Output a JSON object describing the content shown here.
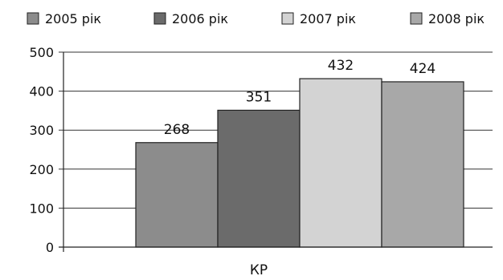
{
  "chart_data": {
    "type": "bar",
    "categories": [
      "КР"
    ],
    "series": [
      {
        "name": "2005 рік",
        "values": [
          268
        ],
        "color": "#8c8c8c"
      },
      {
        "name": "2006 рік",
        "values": [
          351
        ],
        "color": "#6b6b6b"
      },
      {
        "name": "2007 рік",
        "values": [
          432
        ],
        "color": "#d3d3d3"
      },
      {
        "name": "2008 рік",
        "values": [
          424
        ],
        "color": "#a8a8a8"
      }
    ],
    "yticks": [
      "0",
      "100",
      "200",
      "300",
      "400",
      "500"
    ],
    "ylim": [
      0,
      500
    ],
    "grid": true,
    "legend_position": "top",
    "data_labels": [
      "268",
      "351",
      "432",
      "424"
    ],
    "title": "",
    "xlabel": "",
    "ylabel": ""
  }
}
